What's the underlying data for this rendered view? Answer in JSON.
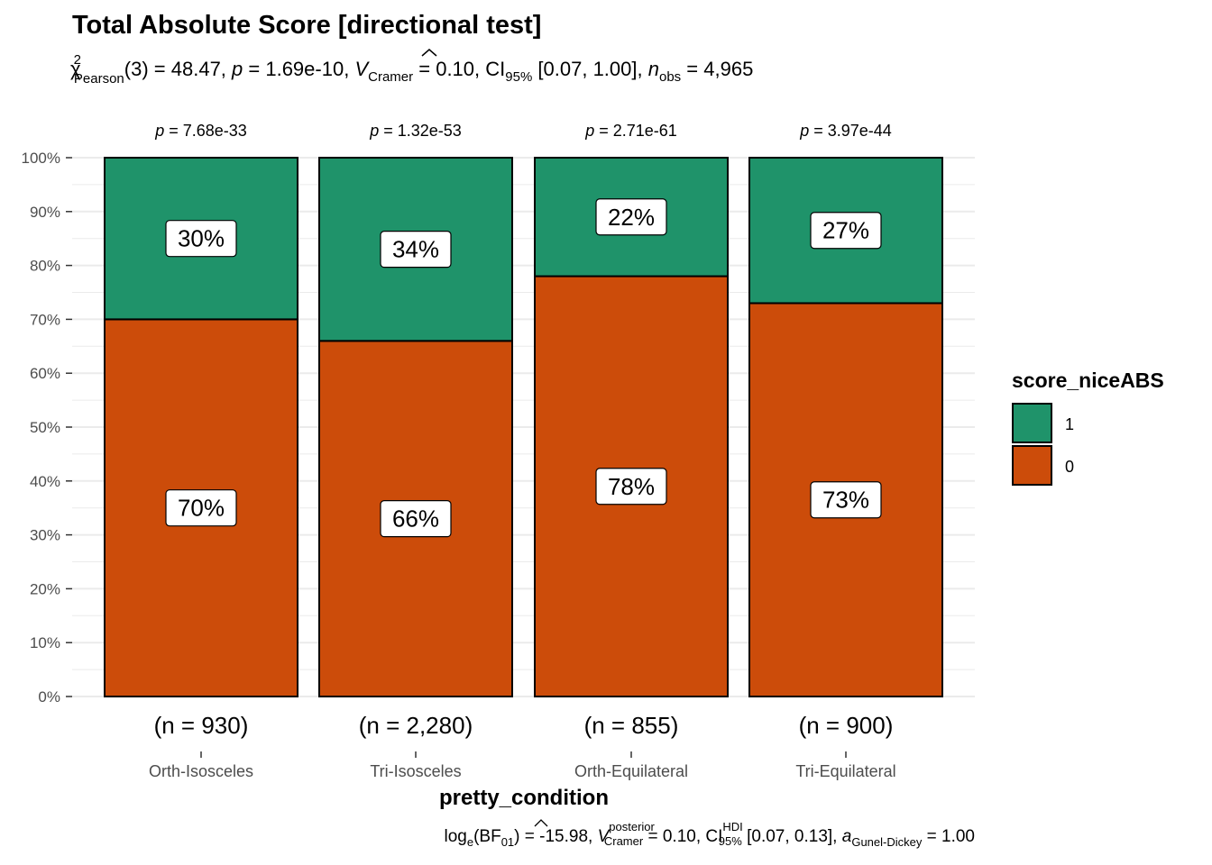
{
  "header": {
    "title": "Total Absolute Score [directional test]"
  },
  "stats": {
    "chi_symbol": "χ",
    "chi_sup": "2",
    "chi_sub": "Pearson",
    "df": "(3)",
    "chi_value": " = 48.47, ",
    "p_symbol": "p",
    "p_value": " = 1.69e-10, ",
    "v_symbol": "V",
    "v_sub": "Cramer",
    "v_value": " = 0.10, CI",
    "ci_sub": "95%",
    "ci_value": " [0.07, 1.00], ",
    "n_symbol": "n",
    "n_sub": "obs",
    "n_value": " = 4,965"
  },
  "bayes": {
    "log": "log",
    "log_sub": "e",
    "bf": "(BF",
    "bf_sub": "01",
    "bf_value": ") = -15.98, ",
    "v_symbol": "V",
    "v_sup": "posterior",
    "v_sub": "Cramer",
    "v_value": " = 0.10, CI",
    "ci_sup": "HDI",
    "ci_sub": "95%",
    "ci_value": " [0.07, 0.13], ",
    "a_symbol": "a",
    "a_sub": "Gunel-Dickey",
    "a_value": " = 1.00"
  },
  "chart_data": {
    "type": "bar",
    "stacked": true,
    "percent": true,
    "categories": [
      "Orth-Isosceles",
      "Tri-Isosceles",
      "Orth-Equilateral",
      "Tri-Equilateral"
    ],
    "n_labels": [
      "(n = 930)",
      "(n = 2,280)",
      "(n = 855)",
      "(n = 900)"
    ],
    "p_labels": [
      "7.68e-33",
      "1.32e-53",
      "2.71e-61",
      "3.97e-44"
    ],
    "p_prefix": "p",
    "p_eq": " = ",
    "series": [
      {
        "name": "0",
        "values": [
          70,
          66,
          78,
          73
        ],
        "labels": [
          "70%",
          "66%",
          "78%",
          "73%"
        ],
        "color": "#cc4c0a"
      },
      {
        "name": "1",
        "values": [
          30,
          34,
          22,
          27
        ],
        "labels": [
          "30%",
          "34%",
          "22%",
          "27%"
        ],
        "color": "#1f936a"
      }
    ],
    "xlabel": "pretty_condition",
    "ylabel": "",
    "ylim": [
      0,
      100
    ],
    "yticks": [
      "0%",
      "10%",
      "20%",
      "30%",
      "40%",
      "50%",
      "60%",
      "70%",
      "80%",
      "90%",
      "100%"
    ],
    "grid": true,
    "legend": {
      "title": "score_niceABS",
      "position": "right",
      "items": [
        {
          "label": "1",
          "color": "#1f936a"
        },
        {
          "label": "0",
          "color": "#cc4c0a"
        }
      ]
    }
  }
}
